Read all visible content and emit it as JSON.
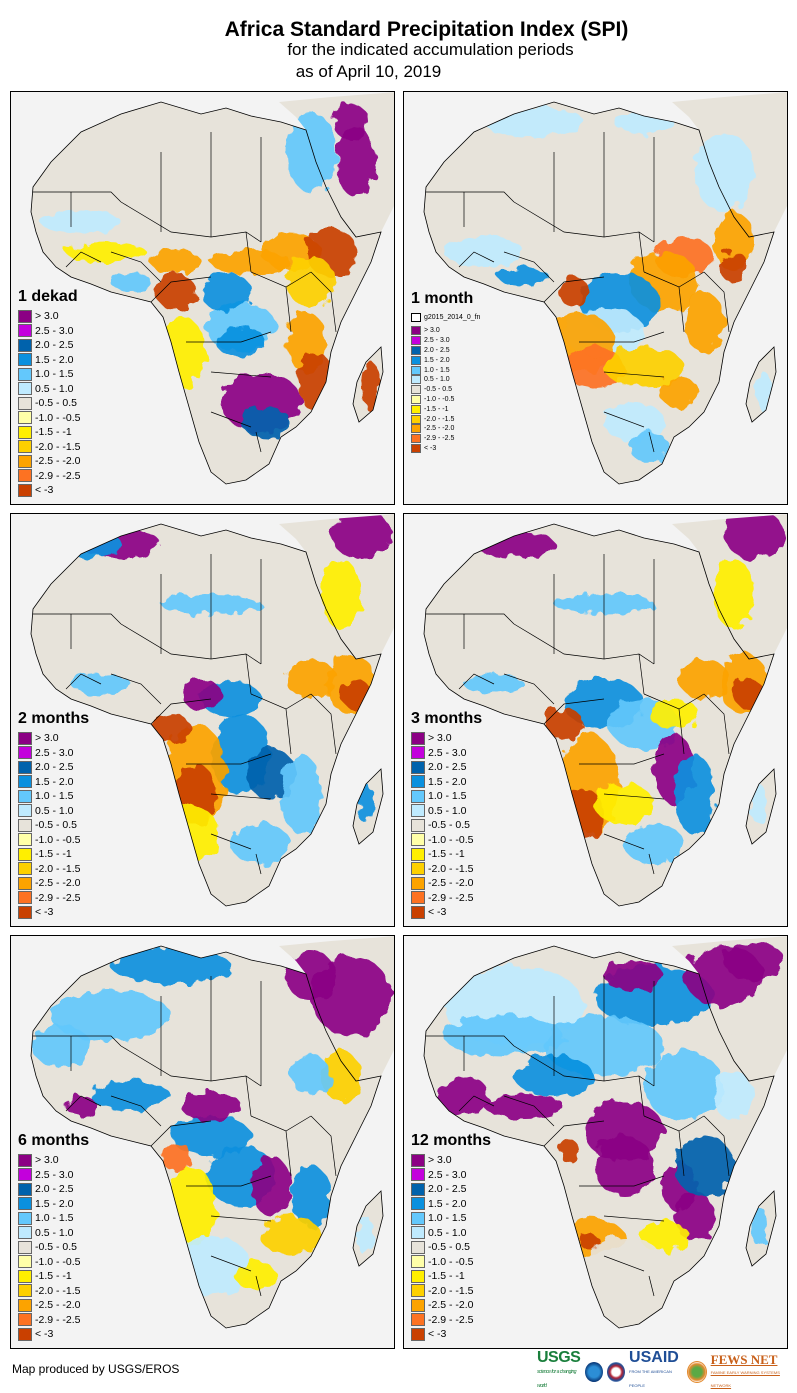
{
  "header": {
    "title": "Africa Standard Precipitation Index (SPI)",
    "subtitle": "for the indicated accumulation periods",
    "date_line": "as of April 10, 2019"
  },
  "legend_classes": [
    {
      "label": "> 3.0",
      "color": "#8b0084"
    },
    {
      "label": "2.5 - 3.0",
      "color": "#c300dc"
    },
    {
      "label": "2.0 - 2.5",
      "color": "#0062ac"
    },
    {
      "label": "1.5 - 2.0",
      "color": "#0a90de"
    },
    {
      "label": "1.0 - 1.5",
      "color": "#63c8fc"
    },
    {
      "label": "0.5 - 1.0",
      "color": "#bfeafe"
    },
    {
      "label": "-0.5 - 0.5",
      "color": "#e7e3da"
    },
    {
      "label": "-1.0 - -0.5",
      "color": "#ffffa8"
    },
    {
      "label": "-1.5 - -1",
      "color": "#ffef00"
    },
    {
      "label": "-2.0 - -1.5",
      "color": "#fdd000"
    },
    {
      "label": "-2.5 - -2.0",
      "color": "#fca300"
    },
    {
      "label": "-2.9 - -2.5",
      "color": "#fd7222"
    },
    {
      "label": "< -3",
      "color": "#c94000"
    }
  ],
  "panels": [
    {
      "period": "1 dekad"
    },
    {
      "period": "1 month",
      "layer_label": "g2015_2014_0_fn"
    },
    {
      "period": "2 months"
    },
    {
      "period": "3 months"
    },
    {
      "period": "6 months"
    },
    {
      "period": "12 months"
    }
  ],
  "colors": {
    "land_neutral": "#e7e3da",
    "ocean": "#f3f3f3",
    "border": "#000000"
  },
  "footer": {
    "credit": "Map produced by USGS/EROS",
    "logos": {
      "usgs": "USGS",
      "usgs_tag": "science for a changing world",
      "usaid": "USAID",
      "usaid_tag": "FROM THE AMERICAN PEOPLE",
      "fews": "FEWS NET",
      "fews_tag": "FAMINE EARLY WARNING SYSTEMS NETWORK"
    }
  }
}
